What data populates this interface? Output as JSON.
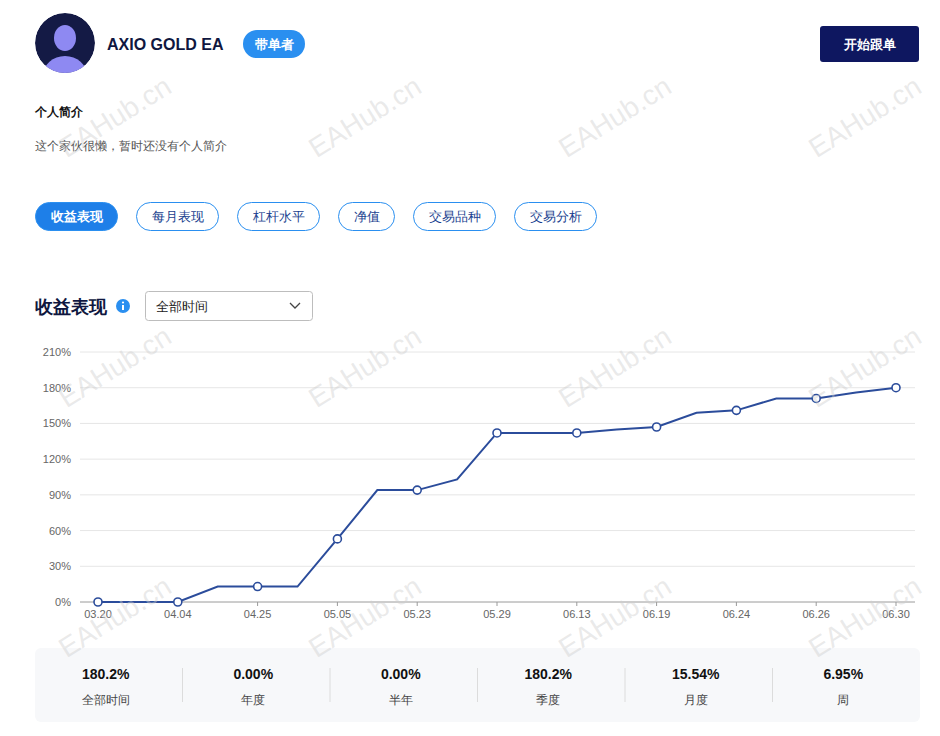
{
  "header": {
    "title": "AXIO GOLD EA",
    "badge": "带单者",
    "button": "开始跟单"
  },
  "profile": {
    "heading": "个人简介",
    "text": "这个家伙很懒，暂时还没有个人简介"
  },
  "tabs": [
    "收益表现",
    "每月表现",
    "杠杆水平",
    "净值",
    "交易品种",
    "交易分析"
  ],
  "section": {
    "title": "收益表现",
    "dropdown": "全部时间"
  },
  "chart_data": {
    "type": "line",
    "categories": [
      "03.20",
      null,
      "04.04",
      null,
      "04.25",
      null,
      "05.05",
      null,
      "05.23",
      null,
      "05.29",
      null,
      "06.13",
      null,
      "06.19",
      null,
      "06.24",
      null,
      "06.26",
      null,
      "06.30"
    ],
    "values": [
      0,
      0,
      0,
      13,
      13,
      13,
      53,
      94,
      94,
      103,
      142,
      142,
      142,
      145,
      147,
      159,
      161,
      171,
      171,
      176,
      180
    ],
    "color": "#2b4c9b",
    "marker": "circle",
    "grid": true,
    "ylim": [
      0,
      210
    ],
    "yticks": [
      {
        "value": 0,
        "label": "0%"
      },
      {
        "value": 30,
        "label": "30%"
      },
      {
        "value": 60,
        "label": "60%"
      },
      {
        "value": 90,
        "label": "90%"
      },
      {
        "value": 120,
        "label": "120%"
      },
      {
        "value": 150,
        "label": "150%"
      },
      {
        "value": 180,
        "label": "180%"
      },
      {
        "value": 210,
        "label": "210%"
      }
    ]
  },
  "stats": [
    {
      "value": "180.2%",
      "label": "全部时间"
    },
    {
      "value": "0.00%",
      "label": "年度"
    },
    {
      "value": "0.00%",
      "label": "半年"
    },
    {
      "value": "180.2%",
      "label": "季度"
    },
    {
      "value": "15.54%",
      "label": "月度"
    },
    {
      "value": "6.95%",
      "label": "周"
    }
  ],
  "watermark": "EAHub.cn"
}
